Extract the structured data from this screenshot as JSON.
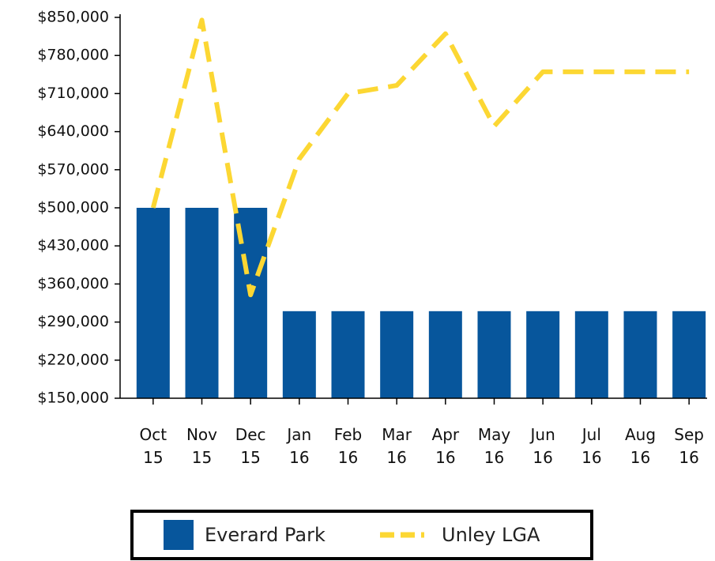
{
  "chart_data": {
    "type": "combo",
    "categories": [
      "Oct 15",
      "Nov 15",
      "Dec 15",
      "Jan 16",
      "Feb 16",
      "Mar 16",
      "Apr 16",
      "May 16",
      "Jun 16",
      "Jul 16",
      "Aug 16",
      "Sep 16"
    ],
    "series": [
      {
        "name": "Everard Park",
        "type": "bar",
        "color": "#07569c",
        "values": [
          500000,
          500000,
          500000,
          310000,
          310000,
          310000,
          310000,
          310000,
          310000,
          310000,
          310000,
          310000
        ]
      },
      {
        "name": "Unley LGA",
        "type": "line",
        "color": "#fcd733",
        "values": [
          500000,
          845000,
          340000,
          590000,
          710000,
          725000,
          820000,
          650000,
          750000,
          750000,
          750000,
          750000
        ]
      }
    ],
    "ylim": [
      150000,
      850000
    ],
    "yticks": [
      {
        "value": 150000,
        "label": "$150,000"
      },
      {
        "value": 220000,
        "label": "$220,000"
      },
      {
        "value": 290000,
        "label": "$290,000"
      },
      {
        "value": 360000,
        "label": "$360,000"
      },
      {
        "value": 430000,
        "label": "$430,000"
      },
      {
        "value": 500000,
        "label": "$500,000"
      },
      {
        "value": 570000,
        "label": "$570,000"
      },
      {
        "value": 640000,
        "label": "$640,000"
      },
      {
        "value": 710000,
        "label": "$710,000"
      },
      {
        "value": 780000,
        "label": "$780,000"
      },
      {
        "value": 850000,
        "label": "$850,000"
      }
    ],
    "legend": "bottom"
  }
}
